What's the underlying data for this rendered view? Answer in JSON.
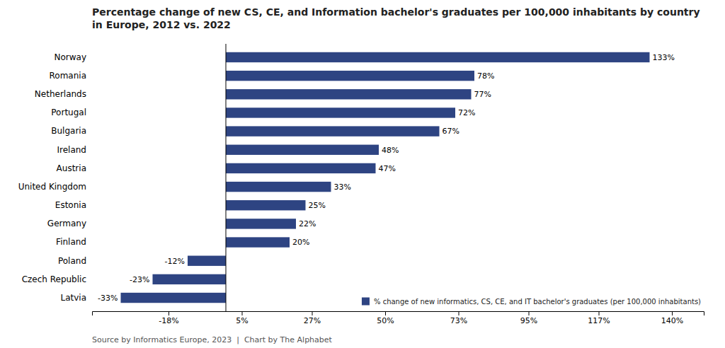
{
  "chart_data": {
    "type": "bar",
    "orientation": "horizontal",
    "title": "Percentage change of new CS, CE, and Information bachelor's graduates per 100,000 inhabitants by country in Europe, 2012 vs. 2022",
    "annotations": [
      "Source by Informatics Europe, 2023  |  Chart by The Alphabet"
    ],
    "categories": [
      "Norway",
      "Romania",
      "Netherlands",
      "Portugal",
      "Bulgaria",
      "Ireland",
      "Austria",
      "United Kingdom",
      "Estonia",
      "Germany",
      "Finland",
      "Poland",
      "Czech Republic",
      "Latvia"
    ],
    "series": [
      {
        "name": "% change of new informatics, CS, CE, and IT bachelor's graduates (per 100,000 inhabitants)",
        "color": "#2e4482",
        "values": [
          133,
          78,
          77,
          72,
          67,
          48,
          47,
          33,
          25,
          22,
          20,
          -12,
          -23,
          -33
        ],
        "value_labels": [
          "133%",
          "78%",
          "77%",
          "72%",
          "67%",
          "48%",
          "47%",
          "33%",
          "25%",
          "22%",
          "20%",
          "-12%",
          "-23%",
          "-33%"
        ]
      }
    ],
    "xlim": [
      -42,
      150
    ],
    "xticks": [
      {
        "value": -18,
        "label": "-18%"
      },
      {
        "value": 5,
        "label": "5%"
      },
      {
        "value": 27,
        "label": "27%"
      },
      {
        "value": 50,
        "label": "50%"
      },
      {
        "value": 73,
        "label": "73%"
      },
      {
        "value": 95,
        "label": "95%"
      },
      {
        "value": 117,
        "label": "117%"
      },
      {
        "value": 140,
        "label": "140%"
      }
    ],
    "grid": false,
    "legend": "lower right",
    "data_labels": true
  }
}
